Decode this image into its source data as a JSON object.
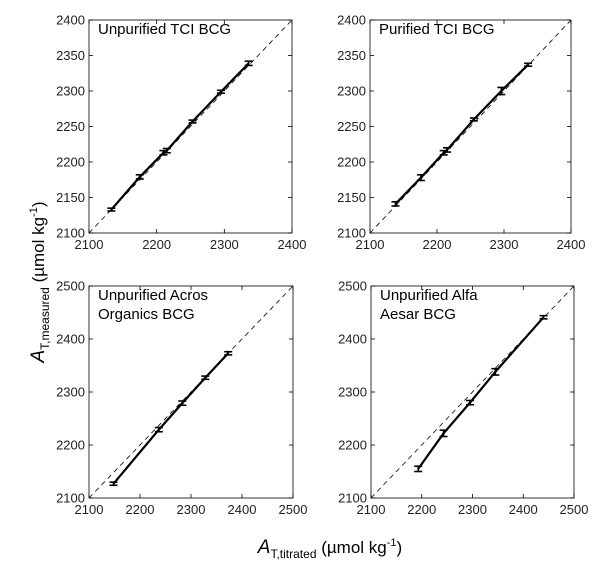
{
  "axis_labels": {
    "y_main": "A",
    "y_sub": "T,measured",
    "y_unit": " (µmol kg",
    "y_exp": "-1",
    "y_close": ")",
    "x_main": "A",
    "x_sub": "T,titrated",
    "x_unit": " (µmol kg",
    "x_exp": "-1",
    "x_close": ")"
  },
  "chart_data": [
    {
      "type": "line",
      "title": [
        "Unpurified TCI BCG"
      ],
      "xlim": [
        2100,
        2400
      ],
      "ylim": [
        2100,
        2400
      ],
      "xticks": [
        2100,
        2200,
        2300,
        2400
      ],
      "yticks": [
        2100,
        2150,
        2200,
        2250,
        2300,
        2350,
        2400
      ],
      "reference_line": "1:1 dashed",
      "points": [
        {
          "x": 2133,
          "y": 2133,
          "err": 2
        },
        {
          "x": 2175,
          "y": 2179,
          "err": 3
        },
        {
          "x": 2210,
          "y": 2213,
          "err": 3
        },
        {
          "x": 2215,
          "y": 2216,
          "err": 3
        },
        {
          "x": 2253,
          "y": 2257,
          "err": 2
        },
        {
          "x": 2295,
          "y": 2299,
          "err": 2
        },
        {
          "x": 2336,
          "y": 2339,
          "err": 3
        }
      ]
    },
    {
      "type": "line",
      "title": [
        "Purified TCI BCG"
      ],
      "xlim": [
        2100,
        2400
      ],
      "ylim": [
        2100,
        2400
      ],
      "xticks": [
        2100,
        2200,
        2300,
        2400
      ],
      "yticks": [
        2100,
        2150,
        2200,
        2250,
        2300,
        2350,
        2400
      ],
      "reference_line": "1:1 dashed",
      "points": [
        {
          "x": 2138,
          "y": 2141,
          "err": 3
        },
        {
          "x": 2176,
          "y": 2178,
          "err": 4
        },
        {
          "x": 2210,
          "y": 2213,
          "err": 3
        },
        {
          "x": 2215,
          "y": 2217,
          "err": 3
        },
        {
          "x": 2255,
          "y": 2260,
          "err": 2
        },
        {
          "x": 2296,
          "y": 2300,
          "err": 5
        },
        {
          "x": 2336,
          "y": 2337,
          "err": 2
        }
      ]
    },
    {
      "type": "line",
      "title": [
        "Unpurified Acros",
        "Organics BCG"
      ],
      "xlim": [
        2100,
        2500
      ],
      "ylim": [
        2100,
        2500
      ],
      "xticks": [
        2100,
        2200,
        2300,
        2400,
        2500
      ],
      "yticks": [
        2100,
        2200,
        2300,
        2400,
        2500
      ],
      "reference_line": "1:1 dashed",
      "points": [
        {
          "x": 2148,
          "y": 2127,
          "err": 3
        },
        {
          "x": 2237,
          "y": 2229,
          "err": 4
        },
        {
          "x": 2283,
          "y": 2279,
          "err": 4
        },
        {
          "x": 2328,
          "y": 2327,
          "err": 3
        },
        {
          "x": 2373,
          "y": 2373,
          "err": 3
        }
      ]
    },
    {
      "type": "line",
      "title": [
        "Unpurified Alfa",
        "Aesar BCG"
      ],
      "xlim": [
        2100,
        2500
      ],
      "ylim": [
        2100,
        2500
      ],
      "xticks": [
        2100,
        2200,
        2300,
        2400,
        2500
      ],
      "yticks": [
        2100,
        2200,
        2300,
        2400,
        2500
      ],
      "reference_line": "1:1 dashed",
      "points": [
        {
          "x": 2193,
          "y": 2155,
          "err": 5
        },
        {
          "x": 2243,
          "y": 2222,
          "err": 6
        },
        {
          "x": 2295,
          "y": 2280,
          "err": 4
        },
        {
          "x": 2345,
          "y": 2338,
          "err": 6
        },
        {
          "x": 2440,
          "y": 2441,
          "err": 3
        }
      ]
    }
  ]
}
